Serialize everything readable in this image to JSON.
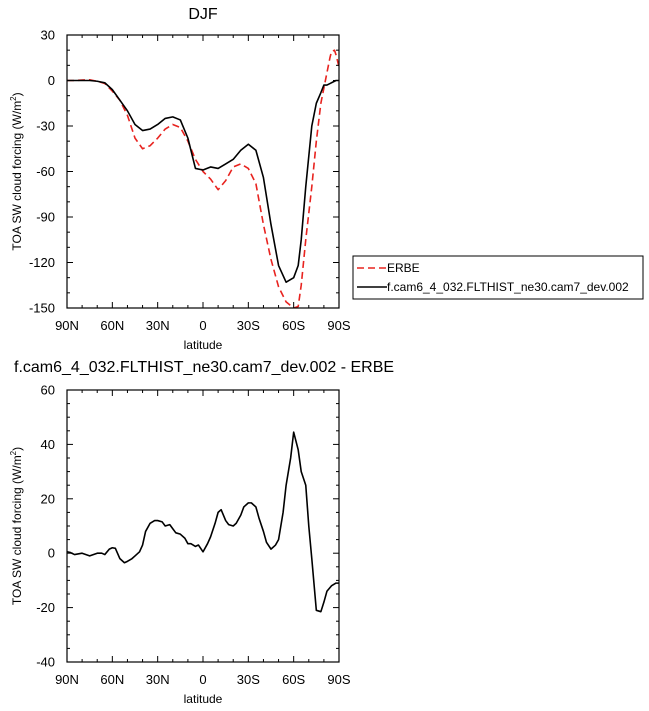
{
  "chart_data": [
    {
      "type": "line",
      "title": "DJF",
      "xlabel": "latitude",
      "ylabel": "TOA SW cloud forcing (W/m²)",
      "ylabel_main": "TOA SW cloud forcing (W/m",
      "ylabel_sup": "2",
      "ylabel_tail": ")",
      "xlim": [
        -90,
        90
      ],
      "ylim": [
        -150,
        30
      ],
      "xticks": [
        -90,
        -60,
        -30,
        0,
        30,
        60,
        90
      ],
      "xtick_labels": [
        "90N",
        "60N",
        "30N",
        "0",
        "30S",
        "60S",
        "90S"
      ],
      "yticks": [
        30,
        0,
        -30,
        -60,
        -90,
        -120,
        -150
      ],
      "ytick_labels": [
        "30",
        "0",
        "-30",
        "-60",
        "-90",
        "-120",
        "-150"
      ],
      "grid": false,
      "legend_position": "right",
      "series": [
        {
          "name": "ERBE",
          "color": "#e8231f",
          "dash": "dashed",
          "x": [
            -90,
            -85,
            -80,
            -75,
            -70,
            -65,
            -60,
            -55,
            -50,
            -45,
            -40,
            -35,
            -30,
            -25,
            -20,
            -15,
            -10,
            -5,
            0,
            5,
            10,
            15,
            20,
            25,
            30,
            35,
            40,
            45,
            50,
            55,
            60,
            63,
            65,
            68,
            72,
            75,
            78,
            80,
            82,
            84,
            85,
            87,
            88,
            90
          ],
          "y": [
            0,
            0,
            0.3,
            0.5,
            -0.5,
            -2,
            -7,
            -13,
            -23,
            -38,
            -45,
            -43,
            -38,
            -32,
            -29,
            -31,
            -40,
            -52,
            -60,
            -65,
            -72,
            -66,
            -57,
            -55,
            -58,
            -68,
            -95,
            -118,
            -136,
            -146,
            -150,
            -149,
            -135,
            -105,
            -70,
            -40,
            -15,
            -5,
            5,
            15,
            19,
            20,
            17,
            9
          ]
        },
        {
          "name": "f.cam6_4_032.FLTHIST_ne30.cam7_dev.002",
          "color": "#000000",
          "dash": "solid",
          "x": [
            -90,
            -85,
            -80,
            -75,
            -70,
            -65,
            -60,
            -55,
            -50,
            -45,
            -40,
            -35,
            -30,
            -25,
            -20,
            -15,
            -10,
            -5,
            0,
            5,
            10,
            15,
            20,
            25,
            30,
            35,
            40,
            45,
            50,
            55,
            60,
            63,
            65,
            68,
            72,
            75,
            78,
            80,
            82,
            84,
            86,
            88,
            90
          ],
          "y": [
            0,
            0,
            0,
            0,
            -0.5,
            -1.5,
            -6,
            -13,
            -20,
            -29,
            -33,
            -32,
            -29,
            -25,
            -24,
            -26,
            -38,
            -58,
            -59,
            -57,
            -58,
            -55,
            -52,
            -46,
            -42,
            -46,
            -64,
            -95,
            -122,
            -133,
            -130,
            -122,
            -105,
            -70,
            -30,
            -15,
            -8,
            -3,
            -3,
            -2,
            -1,
            0,
            0
          ]
        }
      ]
    },
    {
      "type": "line",
      "title": "f.cam6_4_032.FLTHIST_ne30.cam7_dev.002 - ERBE",
      "xlabel": "latitude",
      "ylabel": "TOA SW cloud forcing (W/m²)",
      "ylabel_main": "TOA SW cloud forcing (W/m",
      "ylabel_sup": "2",
      "ylabel_tail": ")",
      "xlim": [
        -90,
        90
      ],
      "ylim": [
        -40,
        60
      ],
      "xticks": [
        -90,
        -60,
        -30,
        0,
        30,
        60,
        90
      ],
      "xtick_labels": [
        "90N",
        "60N",
        "30N",
        "0",
        "30S",
        "60S",
        "90S"
      ],
      "yticks": [
        60,
        40,
        20,
        0,
        -20,
        -40
      ],
      "ytick_labels": [
        "60",
        "40",
        "20",
        "0",
        "-20",
        "-40"
      ],
      "grid": false,
      "series": [
        {
          "color": "#000000",
          "dash": "solid",
          "x": [
            -90,
            -88,
            -85,
            -80,
            -75,
            -70,
            -67,
            -65,
            -62,
            -60,
            -58,
            -55,
            -52,
            -50,
            -47,
            -45,
            -42,
            -40,
            -38,
            -35,
            -32,
            -30,
            -27,
            -25,
            -22,
            -20,
            -18,
            -15,
            -12,
            -10,
            -8,
            -5,
            -3,
            0,
            3,
            5,
            8,
            10,
            12,
            15,
            17,
            20,
            22,
            25,
            27,
            30,
            32,
            35,
            37,
            40,
            42,
            45,
            48,
            50,
            53,
            55,
            58,
            60,
            63,
            65,
            68,
            70,
            72,
            75,
            78,
            80,
            82,
            85,
            88,
            90
          ],
          "y": [
            0.5,
            0.3,
            -0.5,
            0,
            -1,
            0,
            0,
            -0.5,
            1.5,
            2,
            1.8,
            -2,
            -3.5,
            -3,
            -2,
            -1,
            0.5,
            3,
            8,
            11,
            12,
            12,
            11.5,
            10,
            10.5,
            9,
            7.5,
            7,
            5.5,
            3.5,
            3.5,
            2.5,
            3,
            0.5,
            3.5,
            6,
            11,
            15,
            16,
            12,
            10.5,
            10,
            11,
            14,
            17,
            18.5,
            18.5,
            17,
            13,
            8,
            4,
            1.5,
            3,
            5,
            15,
            25,
            35,
            44.5,
            38,
            30,
            25,
            10,
            -2,
            -21,
            -21.5,
            -18,
            -14,
            -12,
            -11,
            -11
          ]
        }
      ]
    }
  ]
}
